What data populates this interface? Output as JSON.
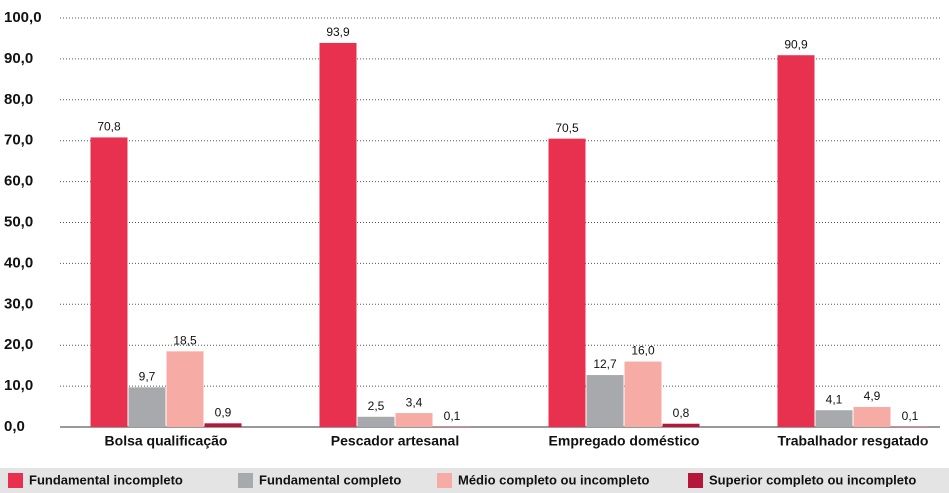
{
  "chart_data": {
    "type": "bar",
    "categories": [
      "Bolsa qualificação",
      "Pescador artesanal",
      "Empregado doméstico",
      "Trabalhador resgatado"
    ],
    "series": [
      {
        "name": "Fundamental incompleto",
        "color": "#e8304f",
        "values": [
          70.8,
          93.9,
          70.5,
          90.9
        ],
        "value_labels": [
          "70,8",
          "93,9",
          "70,5",
          "90,9"
        ]
      },
      {
        "name": "Fundamental completo",
        "color": "#a7a9ac",
        "values": [
          9.7,
          2.5,
          12.7,
          4.1
        ],
        "value_labels": [
          "9,7",
          "2,5",
          "12,7",
          "4,1"
        ]
      },
      {
        "name": "Médio completo ou incompleto",
        "color": "#f7aba5",
        "values": [
          18.5,
          3.4,
          16.0,
          4.9
        ],
        "value_labels": [
          "18,5",
          "3,4",
          "16,0",
          "4,9"
        ]
      },
      {
        "name": "Superior completo ou incompleto",
        "color": "#b5173b",
        "values": [
          0.9,
          0.1,
          0.8,
          0.1
        ],
        "value_labels": [
          "0,9",
          "0,1",
          "0,8",
          "0,1"
        ]
      }
    ],
    "ylim": [
      0,
      100
    ],
    "yticks": [
      {
        "value": 0,
        "label": "0,0"
      },
      {
        "value": 10,
        "label": "10,0"
      },
      {
        "value": 20,
        "label": "20,0"
      },
      {
        "value": 30,
        "label": "30,0"
      },
      {
        "value": 40,
        "label": "40,0"
      },
      {
        "value": 50,
        "label": "50,0"
      },
      {
        "value": 60,
        "label": "60,0"
      },
      {
        "value": 70,
        "label": "70,0"
      },
      {
        "value": 80,
        "label": "80,0"
      },
      {
        "value": 90,
        "label": "90,0"
      },
      {
        "value": 100,
        "label": "100,0"
      }
    ],
    "grid": true,
    "legend": "bottom"
  }
}
